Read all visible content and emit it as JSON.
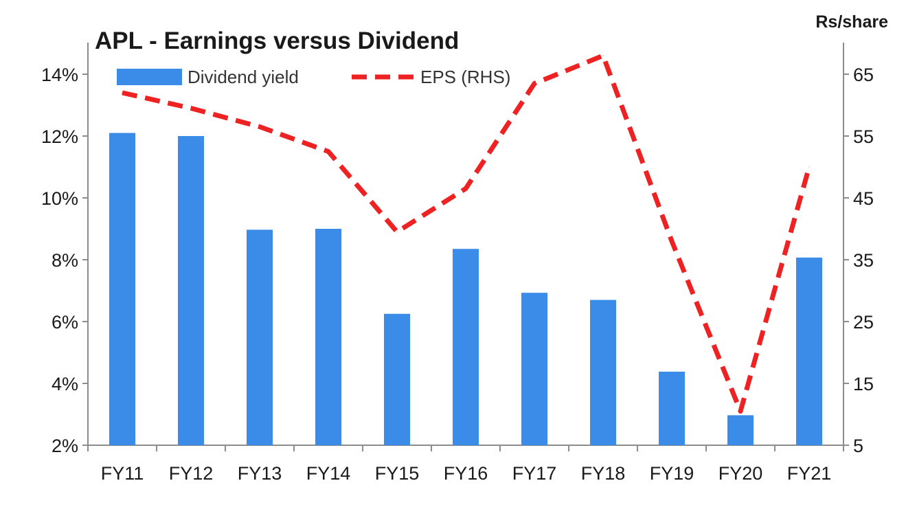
{
  "chart_data": {
    "type": "bar",
    "title": "APL - Earnings versus Dividend",
    "right_axis_unit": "Rs/share",
    "categories": [
      "FY11",
      "FY12",
      "FY13",
      "FY14",
      "FY15",
      "FY16",
      "FY17",
      "FY18",
      "FY19",
      "FY20",
      "FY21"
    ],
    "series": [
      {
        "name": "Dividend yield",
        "type": "bar",
        "axis": "left",
        "color": "#3b8be8",
        "values": [
          12.1,
          12.0,
          8.97,
          9.0,
          6.25,
          8.35,
          6.93,
          6.7,
          4.38,
          2.97,
          8.07
        ]
      },
      {
        "name": "EPS (RHS)",
        "type": "line",
        "style": "dashed",
        "axis": "right",
        "color": "#ee2222",
        "values": [
          62,
          59.5,
          56.5,
          52.5,
          39.5,
          46.5,
          63.5,
          68,
          38,
          10.5,
          50
        ]
      }
    ],
    "y_left": {
      "min": 2,
      "max": 14,
      "ticks": [
        2,
        4,
        6,
        8,
        10,
        12,
        14
      ],
      "format": "percent"
    },
    "y_right": {
      "min": 5,
      "max": 65,
      "ticks": [
        5,
        15,
        25,
        35,
        45,
        55,
        65
      ]
    },
    "legend_position": "top",
    "grid": false
  }
}
